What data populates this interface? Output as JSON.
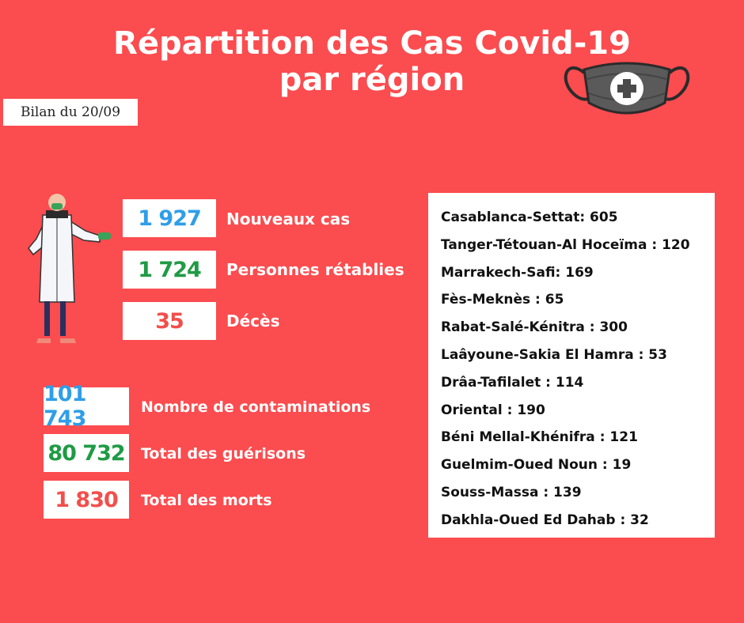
{
  "title_line1": "Répartition des Cas Covid-19",
  "title_line2": "par région",
  "date_label": "Bilan du 20/09",
  "icons": {
    "mask": "face-mask-icon",
    "doctor": "doctor-illustration"
  },
  "colors": {
    "background": "#fb4c4f",
    "blue": "#2f9ee8",
    "green": "#1f9b45",
    "red": "#f24f4c"
  },
  "daily": [
    {
      "value": "1 927",
      "label": "Nouveaux cas"
    },
    {
      "value": "1 724",
      "label": "Personnes rétablies"
    },
    {
      "value": "35",
      "label": "Décès"
    }
  ],
  "totals": [
    {
      "value": "101 743",
      "label": "Nombre de contaminations"
    },
    {
      "value": "80 732",
      "label": "Total des guérisons"
    },
    {
      "value": "1 830",
      "label": "Total des morts"
    }
  ],
  "regions": [
    "Casablanca-Settat: 605",
    "Tanger-Tétouan-Al Hoceïma : 120",
    "Marrakech-Safi: 169",
    "Fès-Meknès : 65",
    "Rabat-Salé-Kénitra : 300",
    "Laâyoune-Sakia El Hamra : 53",
    "Drâa-Tafilalet : 114",
    "Oriental : 190",
    "Béni Mellal-Khénifra : 121",
    "Guelmim-Oued Noun : 19",
    "Souss-Massa : 139",
    "Dakhla-Oued Ed Dahab : 32"
  ]
}
